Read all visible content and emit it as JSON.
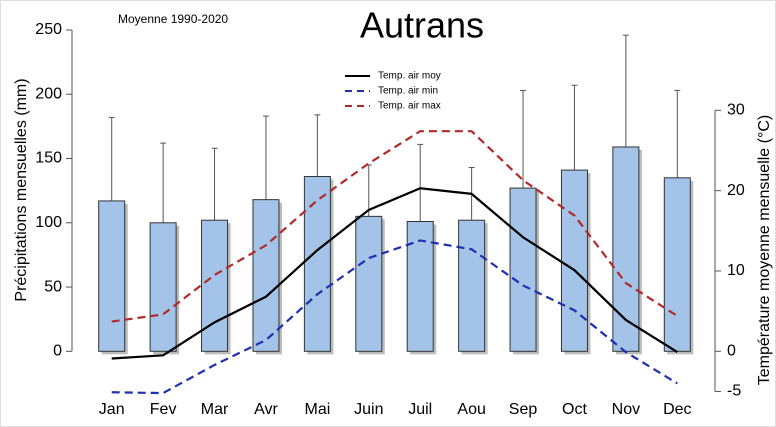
{
  "chart_data": {
    "type": "bar",
    "title": "Autrans",
    "subtitle": "Moyenne 1990-2020",
    "ylabel": "Précipitations mensuelles (mm)",
    "y2label": "Température moyenne mensuelle (°C)",
    "categories": [
      "Jan",
      "Fev",
      "Mar",
      "Avr",
      "Mai",
      "Juin",
      "Juil",
      "Aou",
      "Sep",
      "Oct",
      "Nov",
      "Dec"
    ],
    "ylim": [
      -34,
      250
    ],
    "yticks": [
      0,
      50,
      100,
      150,
      200,
      250
    ],
    "y2lim": [
      -5.44,
      40
    ],
    "y2ticks": [
      -5,
      0,
      10,
      20,
      30
    ],
    "series": [
      {
        "type": "bar",
        "color": "#a3c4e8",
        "values": [
          117,
          100,
          102,
          118,
          136,
          105,
          101,
          102,
          127,
          141,
          159,
          135
        ],
        "errors": [
          65,
          62,
          56,
          65,
          48,
          40,
          60,
          41,
          76,
          66,
          87,
          68
        ]
      },
      {
        "type": "line",
        "name": "Temp. air moy",
        "axis": "y2",
        "color": "#000000",
        "dashed": false,
        "values": [
          -0.9,
          -0.5,
          3.6,
          6.8,
          12.6,
          17.6,
          20.3,
          19.6,
          14.2,
          10.1,
          3.9,
          -0.1
        ]
      },
      {
        "type": "line",
        "name": "Temp. air min",
        "axis": "y2",
        "color": "#1f2fb0",
        "dashed": true,
        "values": [
          -5.1,
          -5.2,
          -1.7,
          1.4,
          7.1,
          11.6,
          13.8,
          12.7,
          8.2,
          5.1,
          -0.1,
          -4.0
        ]
      },
      {
        "type": "line",
        "name": "Temp. air max",
        "axis": "y2",
        "color": "#b02a2a",
        "dashed": true,
        "values": [
          3.7,
          4.6,
          9.5,
          13.2,
          18.8,
          23.4,
          27.4,
          27.4,
          21.3,
          16.9,
          8.5,
          4.4
        ]
      }
    ]
  }
}
